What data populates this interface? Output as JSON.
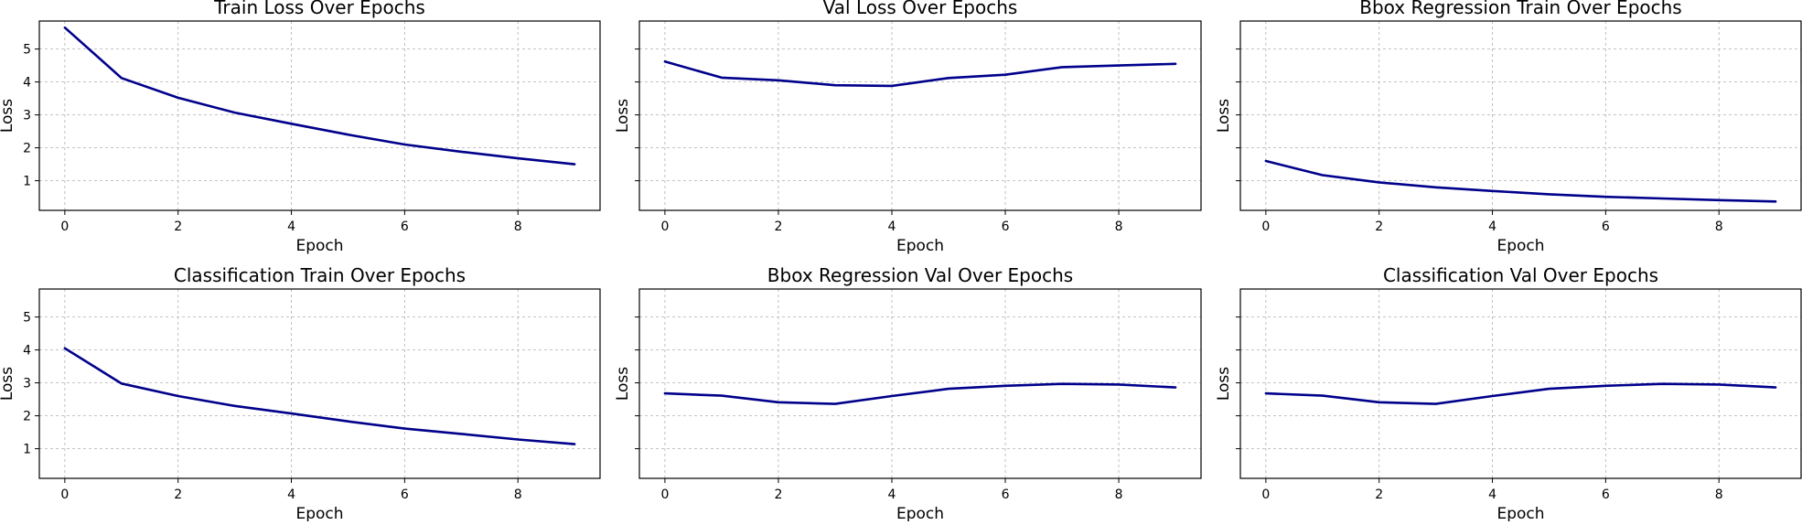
{
  "colors": {
    "line": "#00008B"
  },
  "chart_data": [
    {
      "type": "line",
      "title": "Train Loss Over Epochs",
      "xlabel": "Epoch",
      "ylabel": "Loss",
      "xlim": [
        -0.45,
        9.45
      ],
      "ylim": [
        0.1,
        5.85
      ],
      "x_ticks": [
        0,
        2,
        4,
        6,
        8
      ],
      "y_ticks": [
        1,
        2,
        3,
        4,
        5
      ],
      "y_tick_labels_shown": true,
      "grid": true,
      "x": [
        0,
        1,
        2,
        3,
        4,
        5,
        6,
        7,
        8,
        9
      ],
      "values": [
        5.65,
        4.12,
        3.52,
        3.07,
        2.73,
        2.4,
        2.1,
        1.88,
        1.68,
        1.5
      ]
    },
    {
      "type": "line",
      "title": "Val Loss Over Epochs",
      "xlabel": "Epoch",
      "ylabel": "Loss",
      "xlim": [
        -0.45,
        9.45
      ],
      "ylim": [
        0.1,
        5.85
      ],
      "x_ticks": [
        0,
        2,
        4,
        6,
        8
      ],
      "y_ticks": [
        1,
        2,
        3,
        4,
        5
      ],
      "y_tick_labels_shown": false,
      "grid": true,
      "x": [
        0,
        1,
        2,
        3,
        4,
        5,
        6,
        7,
        8,
        9
      ],
      "values": [
        4.62,
        4.13,
        4.05,
        3.9,
        3.88,
        4.12,
        4.22,
        4.45,
        4.5,
        4.55
      ]
    },
    {
      "type": "line",
      "title": "Bbox Regression Train Over Epochs",
      "xlabel": "Epoch",
      "ylabel": "Loss",
      "xlim": [
        -0.45,
        9.45
      ],
      "ylim": [
        0.1,
        5.85
      ],
      "x_ticks": [
        0,
        2,
        4,
        6,
        8
      ],
      "y_ticks": [
        1,
        2,
        3,
        4,
        5
      ],
      "y_tick_labels_shown": false,
      "grid": true,
      "x": [
        0,
        1,
        2,
        3,
        4,
        5,
        6,
        7,
        8,
        9
      ],
      "values": [
        1.6,
        1.17,
        0.95,
        0.8,
        0.69,
        0.59,
        0.51,
        0.46,
        0.41,
        0.37
      ]
    },
    {
      "type": "line",
      "title": "Classification Train Over Epochs",
      "xlabel": "Epoch",
      "ylabel": "Loss",
      "xlim": [
        -0.45,
        9.45
      ],
      "ylim": [
        0.1,
        5.85
      ],
      "x_ticks": [
        0,
        2,
        4,
        6,
        8
      ],
      "y_ticks": [
        1,
        2,
        3,
        4,
        5
      ],
      "y_tick_labels_shown": true,
      "grid": true,
      "x": [
        0,
        1,
        2,
        3,
        4,
        5,
        6,
        7,
        8,
        9
      ],
      "values": [
        4.05,
        2.98,
        2.6,
        2.3,
        2.07,
        1.83,
        1.61,
        1.45,
        1.28,
        1.14
      ]
    },
    {
      "type": "line",
      "title": "Bbox Regression Val Over Epochs",
      "xlabel": "Epoch",
      "ylabel": "Loss",
      "xlim": [
        -0.45,
        9.45
      ],
      "ylim": [
        0.1,
        5.85
      ],
      "x_ticks": [
        0,
        2,
        4,
        6,
        8
      ],
      "y_ticks": [
        1,
        2,
        3,
        4,
        5
      ],
      "y_tick_labels_shown": false,
      "grid": true,
      "x": [
        0,
        1,
        2,
        3,
        4,
        5,
        6,
        7,
        8,
        9
      ],
      "values": [
        2.68,
        2.61,
        2.41,
        2.36,
        2.6,
        2.82,
        2.91,
        2.97,
        2.95,
        2.86
      ]
    },
    {
      "type": "line",
      "title": "Classification Val Over Epochs",
      "xlabel": "Epoch",
      "ylabel": "Loss",
      "xlim": [
        -0.45,
        9.45
      ],
      "ylim": [
        0.1,
        5.85
      ],
      "x_ticks": [
        0,
        2,
        4,
        6,
        8
      ],
      "y_ticks": [
        1,
        2,
        3,
        4,
        5
      ],
      "y_tick_labels_shown": false,
      "grid": true,
      "x": [
        0,
        1,
        2,
        3,
        4,
        5,
        6,
        7,
        8,
        9
      ],
      "values": [
        2.68,
        2.61,
        2.41,
        2.36,
        2.6,
        2.82,
        2.91,
        2.97,
        2.95,
        2.86
      ]
    }
  ]
}
